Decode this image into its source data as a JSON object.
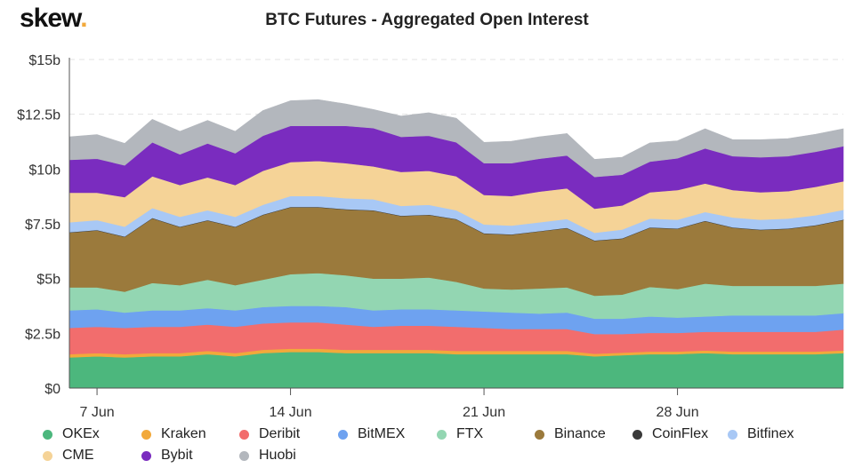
{
  "logo": {
    "text": "skew",
    "dot": "."
  },
  "chart_data": {
    "type": "area",
    "stacked": true,
    "title": "BTC Futures - Aggregated Open Interest",
    "y_unit": "$ billions",
    "ylim": [
      0,
      15
    ],
    "y_ticks": [
      0,
      2.5,
      5,
      7.5,
      10,
      12.5,
      15
    ],
    "y_tick_labels": [
      "$0",
      "$2.5b",
      "$5b",
      "$7.5b",
      "$10b",
      "$12.5b",
      "$15b"
    ],
    "x_tick_labels": [
      "7 Jun",
      "14 Jun",
      "21 Jun",
      "28 Jun"
    ],
    "x_tick_indices": [
      1,
      8,
      15,
      22
    ],
    "x": [
      "6 Jun",
      "7 Jun",
      "8 Jun",
      "9 Jun",
      "10 Jun",
      "11 Jun",
      "12 Jun",
      "13 Jun",
      "14 Jun",
      "15 Jun",
      "16 Jun",
      "17 Jun",
      "18 Jun",
      "19 Jun",
      "20 Jun",
      "21 Jun",
      "22 Jun",
      "23 Jun",
      "24 Jun",
      "25 Jun",
      "26 Jun",
      "27 Jun",
      "28 Jun",
      "29 Jun",
      "30 Jun",
      "1 Jul",
      "2 Jul",
      "3 Jul",
      "4 Jul"
    ],
    "series": [
      {
        "name": "OKEx",
        "color": "#4cb77d",
        "values": [
          1.4,
          1.45,
          1.4,
          1.45,
          1.45,
          1.55,
          1.45,
          1.6,
          1.65,
          1.65,
          1.6,
          1.6,
          1.6,
          1.6,
          1.55,
          1.55,
          1.55,
          1.55,
          1.55,
          1.45,
          1.5,
          1.55,
          1.55,
          1.6,
          1.55,
          1.55,
          1.55,
          1.55,
          1.6
        ]
      },
      {
        "name": "Kraken",
        "color": "#f2a93b",
        "values": [
          0.15,
          0.15,
          0.15,
          0.15,
          0.15,
          0.15,
          0.15,
          0.15,
          0.15,
          0.15,
          0.15,
          0.15,
          0.15,
          0.15,
          0.15,
          0.15,
          0.15,
          0.15,
          0.15,
          0.12,
          0.12,
          0.12,
          0.12,
          0.12,
          0.12,
          0.12,
          0.12,
          0.12,
          0.12
        ]
      },
      {
        "name": "Deribit",
        "color": "#f26d6d",
        "values": [
          1.2,
          1.2,
          1.2,
          1.2,
          1.2,
          1.2,
          1.2,
          1.2,
          1.2,
          1.2,
          1.15,
          1.05,
          1.1,
          1.1,
          1.1,
          1.05,
          1.0,
          1.0,
          1.0,
          0.9,
          0.85,
          0.85,
          0.85,
          0.85,
          0.9,
          0.9,
          0.9,
          0.9,
          0.95
        ]
      },
      {
        "name": "BitMEX",
        "color": "#6ea2f0",
        "values": [
          0.8,
          0.8,
          0.7,
          0.75,
          0.75,
          0.75,
          0.75,
          0.75,
          0.75,
          0.75,
          0.8,
          0.75,
          0.75,
          0.75,
          0.75,
          0.75,
          0.75,
          0.7,
          0.75,
          0.7,
          0.7,
          0.75,
          0.7,
          0.7,
          0.75,
          0.75,
          0.75,
          0.75,
          0.75
        ]
      },
      {
        "name": "FTX",
        "color": "#93d6b2",
        "values": [
          1.05,
          1.0,
          0.95,
          1.25,
          1.15,
          1.3,
          1.15,
          1.25,
          1.45,
          1.5,
          1.45,
          1.45,
          1.4,
          1.45,
          1.3,
          1.05,
          1.05,
          1.15,
          1.15,
          1.05,
          1.1,
          1.35,
          1.3,
          1.5,
          1.35,
          1.35,
          1.35,
          1.35,
          1.35
        ]
      },
      {
        "name": "Binance",
        "color": "#9b7a3c",
        "values": [
          2.5,
          2.6,
          2.5,
          2.95,
          2.65,
          2.7,
          2.65,
          2.95,
          3.05,
          3.0,
          3.0,
          3.1,
          2.85,
          2.85,
          2.85,
          2.5,
          2.5,
          2.6,
          2.7,
          2.5,
          2.55,
          2.7,
          2.75,
          2.85,
          2.65,
          2.55,
          2.6,
          2.75,
          2.9
        ]
      },
      {
        "name": "CoinFlex",
        "color": "#3a3a3a",
        "values": [
          0.02,
          0.02,
          0.02,
          0.02,
          0.02,
          0.02,
          0.02,
          0.02,
          0.02,
          0.02,
          0.02,
          0.02,
          0.02,
          0.02,
          0.02,
          0.02,
          0.02,
          0.02,
          0.02,
          0.02,
          0.02,
          0.02,
          0.02,
          0.02,
          0.02,
          0.02,
          0.02,
          0.02,
          0.02
        ]
      },
      {
        "name": "Bitfinex",
        "color": "#a8c8f5",
        "values": [
          0.45,
          0.45,
          0.45,
          0.45,
          0.45,
          0.45,
          0.45,
          0.45,
          0.5,
          0.5,
          0.5,
          0.5,
          0.45,
          0.45,
          0.4,
          0.4,
          0.4,
          0.4,
          0.4,
          0.35,
          0.4,
          0.4,
          0.4,
          0.4,
          0.45,
          0.45,
          0.45,
          0.45,
          0.45
        ]
      },
      {
        "name": "CME",
        "color": "#f5d397",
        "values": [
          1.35,
          1.25,
          1.35,
          1.45,
          1.45,
          1.5,
          1.45,
          1.55,
          1.55,
          1.6,
          1.6,
          1.5,
          1.55,
          1.55,
          1.55,
          1.35,
          1.35,
          1.4,
          1.4,
          1.1,
          1.1,
          1.2,
          1.35,
          1.3,
          1.25,
          1.25,
          1.25,
          1.3,
          1.3
        ]
      },
      {
        "name": "Bybit",
        "color": "#7a2cbf",
        "values": [
          1.5,
          1.55,
          1.45,
          1.55,
          1.4,
          1.55,
          1.45,
          1.6,
          1.65,
          1.6,
          1.7,
          1.75,
          1.6,
          1.6,
          1.55,
          1.45,
          1.5,
          1.5,
          1.5,
          1.45,
          1.4,
          1.4,
          1.45,
          1.6,
          1.55,
          1.6,
          1.6,
          1.6,
          1.6
        ]
      },
      {
        "name": "Huobi",
        "color": "#b3b7bd",
        "values": [
          1.05,
          1.1,
          1.0,
          1.05,
          1.05,
          1.05,
          1.0,
          1.15,
          1.15,
          1.2,
          1.0,
          0.85,
          0.95,
          1.05,
          1.1,
          0.95,
          1.0,
          1.0,
          1.0,
          0.8,
          0.8,
          0.85,
          0.8,
          0.9,
          0.75,
          0.8,
          0.8,
          0.8,
          0.8
        ]
      }
    ]
  }
}
